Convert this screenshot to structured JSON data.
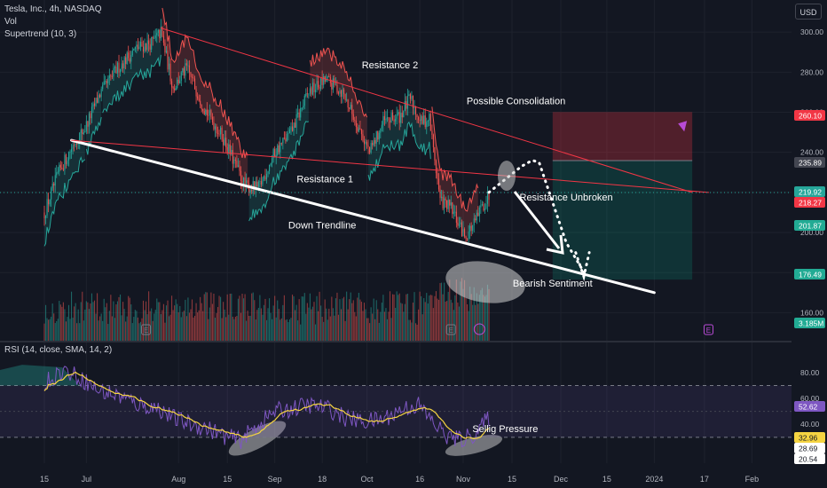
{
  "header": {
    "symbol_title": "Tesla, Inc., 4h, NASDAQ",
    "vol_label": "Vol",
    "supertrend_label": "Supertrend (10, 3)",
    "currency": "USD",
    "rsi_label": "RSI (14, close, SMA, 14, 2)"
  },
  "chart_data": {
    "type": "candlestick",
    "symbol": "TSLA",
    "timeframe": "4h",
    "price_axis": {
      "range": [
        146,
        316
      ],
      "ticks": [
        "300.00",
        "280.00",
        "260.00",
        "240.00",
        "220.00",
        "200.00",
        "180.00",
        "160.00"
      ],
      "tick_values": [
        300,
        280,
        260,
        240,
        220,
        200,
        180,
        160
      ]
    },
    "price_badges": [
      {
        "label": "260.10",
        "value": 260.1,
        "color": "#f23645"
      },
      {
        "label": "235.89",
        "value": 235.89,
        "color": "#434651"
      },
      {
        "label": "219.92",
        "value": 219.92,
        "color": "#26a69a"
      },
      {
        "label": "218.27",
        "value": 218.27,
        "color": "#f23645"
      },
      {
        "label": "201.87",
        "value": 201.87,
        "color": "#22ab94"
      },
      {
        "label": "176.49",
        "value": 176.49,
        "color": "#22ab94"
      },
      {
        "label": "3.185M",
        "value": 3.185,
        "color": "#22ab94"
      }
    ],
    "time_axis": {
      "ticks": [
        "15",
        "Jul",
        "Aug",
        "15",
        "Sep",
        "18",
        "Oct",
        "16",
        "Nov",
        "15",
        "Dec",
        "15",
        "2024",
        "17",
        "Feb"
      ],
      "tick_index": [
        0,
        31,
        99,
        135,
        170,
        205,
        238,
        277,
        309,
        345,
        381,
        415,
        450,
        487,
        522
      ],
      "last_bar_index": 328
    },
    "price_anchors": [
      {
        "i": 0,
        "p": 210
      },
      {
        "i": 10,
        "p": 229
      },
      {
        "i": 22,
        "p": 245
      },
      {
        "i": 30,
        "p": 252
      },
      {
        "i": 40,
        "p": 268
      },
      {
        "i": 55,
        "p": 283
      },
      {
        "i": 68,
        "p": 292
      },
      {
        "i": 80,
        "p": 295
      },
      {
        "i": 86,
        "p": 300
      },
      {
        "i": 95,
        "p": 272
      },
      {
        "i": 105,
        "p": 282
      },
      {
        "i": 118,
        "p": 262
      },
      {
        "i": 132,
        "p": 247
      },
      {
        "i": 148,
        "p": 223
      },
      {
        "i": 158,
        "p": 222
      },
      {
        "i": 170,
        "p": 240
      },
      {
        "i": 182,
        "p": 250
      },
      {
        "i": 195,
        "p": 270
      },
      {
        "i": 208,
        "p": 276
      },
      {
        "i": 220,
        "p": 270
      },
      {
        "i": 232,
        "p": 252
      },
      {
        "i": 240,
        "p": 240
      },
      {
        "i": 250,
        "p": 255
      },
      {
        "i": 262,
        "p": 258
      },
      {
        "i": 270,
        "p": 267
      },
      {
        "i": 278,
        "p": 255
      },
      {
        "i": 284,
        "p": 257
      },
      {
        "i": 292,
        "p": 216
      },
      {
        "i": 300,
        "p": 212
      },
      {
        "i": 310,
        "p": 198
      },
      {
        "i": 318,
        "p": 205
      },
      {
        "i": 322,
        "p": 212
      },
      {
        "i": 328,
        "p": 218
      }
    ],
    "rsi_axis": {
      "range": [
        10,
        95
      ],
      "ticks": [
        "80.00",
        "60.00",
        "40.00"
      ],
      "tick_values": [
        80,
        60,
        40
      ],
      "bands": [
        70,
        30
      ]
    },
    "rsi_badges": [
      {
        "label": "52.62",
        "value": 52.62,
        "color": "#7e57c2"
      },
      {
        "label": "32.96",
        "value": 32.96,
        "color": "#f5d442"
      },
      {
        "label": "28.69",
        "value": 28.69,
        "color": "#ffffff"
      },
      {
        "label": "20.54",
        "value": 20.54,
        "color": "#ffffff"
      }
    ],
    "rsi_anchors": [
      {
        "i": 0,
        "v": 72
      },
      {
        "i": 14,
        "v": 82
      },
      {
        "i": 28,
        "v": 75
      },
      {
        "i": 40,
        "v": 66
      },
      {
        "i": 55,
        "v": 62
      },
      {
        "i": 70,
        "v": 55
      },
      {
        "i": 85,
        "v": 52
      },
      {
        "i": 95,
        "v": 45
      },
      {
        "i": 108,
        "v": 40
      },
      {
        "i": 120,
        "v": 37
      },
      {
        "i": 135,
        "v": 30
      },
      {
        "i": 145,
        "v": 28
      },
      {
        "i": 158,
        "v": 40
      },
      {
        "i": 170,
        "v": 50
      },
      {
        "i": 182,
        "v": 52
      },
      {
        "i": 195,
        "v": 55
      },
      {
        "i": 210,
        "v": 52
      },
      {
        "i": 222,
        "v": 45
      },
      {
        "i": 236,
        "v": 42
      },
      {
        "i": 250,
        "v": 44
      },
      {
        "i": 264,
        "v": 52
      },
      {
        "i": 276,
        "v": 55
      },
      {
        "i": 288,
        "v": 40
      },
      {
        "i": 298,
        "v": 30
      },
      {
        "i": 308,
        "v": 28
      },
      {
        "i": 318,
        "v": 33
      },
      {
        "i": 328,
        "v": 45
      }
    ],
    "annotations": [
      {
        "text": "Resistance 2",
        "i": 255,
        "p": 282
      },
      {
        "text": "Possible Consolidation",
        "i": 348,
        "p": 264
      },
      {
        "text": "Resistance 1",
        "i": 207,
        "p": 225
      },
      {
        "text": "Resistance Unbroken",
        "i": 385,
        "p": 216
      },
      {
        "text": "Down Trendline",
        "i": 205,
        "p": 202
      },
      {
        "text": "Bearish Sentiment",
        "i": 375,
        "p": 173
      },
      {
        "text": "Sellig Pressure",
        "i": 340,
        "rsi": 34
      }
    ],
    "trendlines": [
      {
        "name": "down-trendline",
        "from": {
          "i": 20,
          "p": 246
        },
        "to": {
          "i": 450,
          "p": 170
        },
        "color": "#ffffff",
        "width": 3
      },
      {
        "name": "resistance-2-line",
        "from": {
          "i": 86,
          "p": 302
        },
        "to": {
          "i": 478,
          "p": 220
        },
        "color": "#f23645",
        "width": 1
      },
      {
        "name": "resistance-1-line",
        "from": {
          "i": 20,
          "p": 246
        },
        "to": {
          "i": 490,
          "p": 220
        },
        "color": "#f23645",
        "width": 1
      }
    ],
    "position_box": {
      "from_i": 375,
      "to_i": 478,
      "stop": 260.1,
      "entry": 235.89,
      "target": 176.49
    }
  }
}
